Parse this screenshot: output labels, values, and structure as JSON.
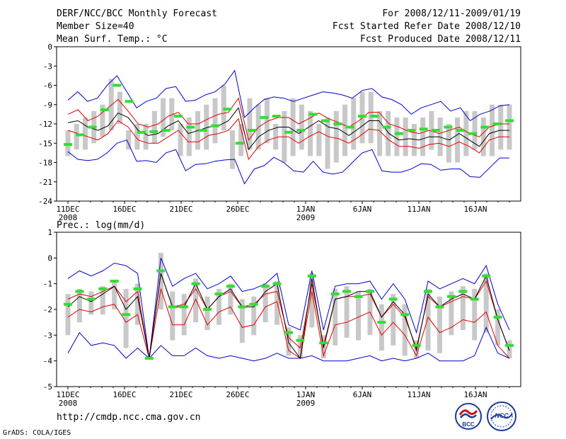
{
  "header": {
    "title": "DERF/NCC/BCC Monthly Forecast",
    "member_size": "Member Size=40",
    "variable": "Mean Surf. Temp.: °C",
    "period": "For 2008/12/11-2009/01/19",
    "start_date": "Fcst Started Refer Date 2008/12/10",
    "produced_date": "Fcst Produced Date 2008/12/11"
  },
  "footer": {
    "url": "http://cmdp.ncc.cma.gov.cn",
    "credit": "GrADS: COLA/IGES",
    "logo_bcc": "BCC",
    "logo_ncc": "NCC"
  },
  "colors": {
    "box": "#c8c8c8",
    "mean": "#000000",
    "inner": "#e00000",
    "outer": "#0000cc",
    "obs": "#33dd33"
  },
  "chart_data": [
    {
      "type": "line",
      "title": "Mean Surf. Temp.: °C",
      "ylim": [
        -24,
        0
      ],
      "yticks": [
        0,
        -3,
        -6,
        -9,
        -12,
        -15,
        -18,
        -21,
        -24
      ],
      "xlim": [
        1,
        40
      ],
      "xtick_days": [
        1,
        6,
        11,
        16,
        22,
        27,
        32,
        37
      ],
      "xtick_labels": [
        "11DEC",
        "16DEC",
        "21DEC",
        "26DEC",
        "1JAN",
        "6JAN",
        "11JAN",
        "16JAN"
      ],
      "xtick_year_labels": [
        "2008",
        "",
        "",
        "",
        "2009",
        "",
        "",
        ""
      ],
      "series": [
        {
          "name": "box_top",
          "values": [
            -13,
            -12,
            -11,
            -10,
            -9,
            -5,
            -7,
            -13,
            -12,
            -12,
            -10,
            -8,
            -8,
            -12,
            -11,
            -10,
            -9,
            -8,
            -6,
            -13,
            -12,
            -8,
            -9,
            -8,
            -12,
            -10,
            -8,
            -9,
            -10,
            -12,
            -11,
            -10,
            -9,
            -8,
            -7,
            -7,
            -10,
            -10,
            -11,
            -11,
            -12,
            -11,
            -10,
            -11,
            -12,
            -11,
            -10,
            -10,
            -11,
            -9,
            -9,
            -9
          ]
        },
        {
          "name": "box_bottom",
          "values": [
            -17,
            -16,
            -16,
            -15,
            -14,
            -13,
            -12,
            -16,
            -16,
            -16,
            -15,
            -14,
            -13,
            -17,
            -17,
            -16,
            -16,
            -15,
            -13,
            -19,
            -17,
            -16,
            -16,
            -15,
            -16,
            -18,
            -17,
            -16,
            -17,
            -17,
            -19,
            -18,
            -17,
            -16,
            -15,
            -15,
            -17,
            -17,
            -17,
            -17,
            -17,
            -17,
            -16,
            -17,
            -18,
            -18,
            -17,
            -16,
            -17,
            -17,
            -16,
            -16
          ]
        },
        {
          "name": "max",
          "values": [
            -8.3,
            -7.0,
            -8.5,
            -8.0,
            -6.0,
            -4.5,
            -7.0,
            -9.5,
            -8.5,
            -8.0,
            -6.5,
            -6.2,
            -8.5,
            -8.3,
            -7.5,
            -7.0,
            -5.8,
            -3.7,
            -11.0,
            -9.5,
            -8.2,
            -7.8,
            -8.0,
            -8.5,
            -8.0,
            -7.5,
            -7.0,
            -7.2,
            -7.5,
            -8.0,
            -6.8,
            -6.5,
            -7.8,
            -8.2,
            -9.0,
            -10.5,
            -9.5,
            -9.0,
            -8.5,
            -10.0,
            -9.5,
            -11.5,
            -10.5,
            -10.0,
            -9.2,
            -9.0
          ]
        },
        {
          "name": "p_upper",
          "values": [
            -10.5,
            -9.8,
            -11.5,
            -10.8,
            -9.5,
            -8.2,
            -10.0,
            -12.0,
            -12.5,
            -12.0,
            -10.8,
            -10.2,
            -12.0,
            -12.0,
            -11.2,
            -10.5,
            -10.2,
            -8.0,
            -14.5,
            -12.5,
            -11.5,
            -11.0,
            -11.0,
            -12.0,
            -11.2,
            -10.3,
            -11.2,
            -11.8,
            -12.5,
            -11.5,
            -10.2,
            -10.2,
            -12.0,
            -12.5,
            -13.2,
            -13.5,
            -13.0,
            -13.5,
            -13.0,
            -12.5,
            -13.5,
            -14.0,
            -12.5,
            -12.0,
            -12.0
          ]
        },
        {
          "name": "mean",
          "values": [
            -11.8,
            -11.5,
            -12.5,
            -13.0,
            -12.3,
            -10.3,
            -11.0,
            -13.0,
            -13.8,
            -13.5,
            -12.3,
            -11.5,
            -13.5,
            -13.0,
            -12.5,
            -12.3,
            -11.5,
            -9.5,
            -16.0,
            -14.0,
            -13.0,
            -12.5,
            -12.5,
            -13.5,
            -12.5,
            -11.5,
            -12.5,
            -12.8,
            -13.8,
            -12.7,
            -11.5,
            -11.5,
            -13.5,
            -14.5,
            -14.3,
            -14.5,
            -14.0,
            -14.0,
            -14.5,
            -13.5,
            -14.5,
            -15.5,
            -13.5,
            -13.0,
            -13.0
          ]
        },
        {
          "name": "p_lower",
          "values": [
            -13.0,
            -13.5,
            -14.0,
            -14.5,
            -13.5,
            -11.5,
            -12.5,
            -14.5,
            -15.0,
            -15.0,
            -14.0,
            -13.0,
            -14.8,
            -14.8,
            -13.8,
            -13.5,
            -13.0,
            -11.2,
            -17.5,
            -15.5,
            -14.5,
            -14.0,
            -14.0,
            -15.0,
            -14.0,
            -13.2,
            -14.0,
            -14.3,
            -15.0,
            -14.0,
            -12.8,
            -13.0,
            -14.5,
            -15.5,
            -15.5,
            -15.8,
            -15.2,
            -15.0,
            -15.5,
            -14.8,
            -15.5,
            -16.5,
            -14.5,
            -14.0,
            -14.0
          ]
        },
        {
          "name": "min",
          "values": [
            -16.3,
            -17.5,
            -17.7,
            -17.5,
            -16.5,
            -15.0,
            -14.5,
            -17.8,
            -17.7,
            -18.0,
            -16.5,
            -16.0,
            -19.3,
            -18.3,
            -18.2,
            -17.8,
            -17.6,
            -17.5,
            -21.3,
            -19.0,
            -18.5,
            -17.2,
            -18.0,
            -19.3,
            -19.5,
            -17.8,
            -19.5,
            -19.8,
            -19.5,
            -18.0,
            -16.5,
            -16.0,
            -19.3,
            -19.5,
            -19.5,
            -19.0,
            -18.2,
            -18.3,
            -19.2,
            -19.0,
            -19.0,
            -20.2,
            -20.3,
            -18.8,
            -17.3,
            -17.3
          ]
        },
        {
          "name": "observed",
          "values": [
            -15.2,
            -13.7,
            -12.5,
            -9.8,
            -6.0,
            -8.5,
            -13.3,
            -13.2,
            -13.0,
            -10.8,
            -12.5,
            -13.0,
            -12.3,
            -9.7,
            -15.0,
            -13.0,
            -11.0,
            -10.8,
            -13.3,
            -13.0,
            -10.5,
            -11.5,
            -12.0,
            -12.5,
            -10.8,
            -10.8,
            -12.5,
            -13.5,
            -13.0,
            -12.8,
            -13.0,
            -12.5,
            -13.0,
            -13.5,
            -12.5,
            -12.0,
            -11.5
          ]
        }
      ]
    },
    {
      "type": "line",
      "title": "Prec.: log(mm/d)",
      "ylim": [
        -5,
        1
      ],
      "yticks": [
        1,
        0,
        -1,
        -2,
        -3,
        -4,
        -5
      ],
      "xlim": [
        1,
        40
      ],
      "xtick_days": [
        1,
        6,
        11,
        16,
        22,
        27,
        32,
        37
      ],
      "xtick_labels": [
        "11DEC",
        "16DEC",
        "21DEC",
        "26DEC",
        "1JAN",
        "6JAN",
        "11JAN",
        "16JAN"
      ],
      "xtick_year_labels": [
        "2008",
        "",
        "",
        "",
        "2009",
        "",
        "",
        ""
      ],
      "series": [
        {
          "name": "box_top",
          "values": [
            -1.4,
            -1.2,
            -1.3,
            -1.1,
            -0.9,
            -1.2,
            -1.0,
            -3.9,
            0.2,
            -1.3,
            -1.4,
            -0.8,
            -1.5,
            -1.2,
            -1.0,
            -1.6,
            -1.5,
            -1.0,
            -0.9,
            -2.7,
            -3.0,
            -0.6,
            -3.0,
            -1.2,
            -1.1,
            -1.3,
            -1.2,
            -1.8,
            -1.4,
            -1.8,
            -3.2,
            -1.2,
            -1.5,
            -1.3,
            -1.1,
            -1.2,
            -0.6,
            -2.0,
            -3.2
          ]
        },
        {
          "name": "box_bottom",
          "values": [
            -3.0,
            -2.5,
            -2.2,
            -2.2,
            -2.0,
            -3.5,
            -2.6,
            -3.9,
            -2.0,
            -3.2,
            -3.0,
            -2.5,
            -2.8,
            -2.6,
            -2.2,
            -3.3,
            -3.0,
            -2.5,
            -2.6,
            -3.8,
            -3.9,
            -2.7,
            -3.9,
            -3.4,
            -3.1,
            -3.2,
            -3.0,
            -3.6,
            -3.4,
            -3.8,
            -3.9,
            -3.6,
            -3.7,
            -3.0,
            -2.8,
            -3.2,
            -2.9,
            -3.4,
            -3.9
          ]
        },
        {
          "name": "max",
          "values": [
            -0.8,
            -0.5,
            -0.7,
            -0.5,
            -0.2,
            -0.3,
            -0.6,
            -3.9,
            0.0,
            -1.1,
            -0.8,
            -0.6,
            -1.2,
            -1.0,
            -0.7,
            -1.3,
            -1.2,
            -1.0,
            -0.6,
            -2.6,
            -2.8,
            -0.5,
            -2.8,
            -1.1,
            -1.0,
            -1.0,
            -0.9,
            -1.6,
            -1.0,
            -1.6,
            -2.9,
            -0.9,
            -1.2,
            -1.0,
            -0.8,
            -1.0,
            -0.3,
            -1.8,
            -2.8
          ]
        },
        {
          "name": "p_upper",
          "values": [
            -1.6,
            -1.4,
            -1.5,
            -1.3,
            -1.1,
            -1.7,
            -1.3,
            -3.9,
            -0.6,
            -1.9,
            -1.8,
            -1.2,
            -2.0,
            -1.5,
            -1.3,
            -1.9,
            -1.8,
            -1.4,
            -1.3,
            -3.1,
            -3.5,
            -1.0,
            -3.4,
            -1.6,
            -1.5,
            -1.5,
            -1.4,
            -2.3,
            -1.8,
            -2.3,
            -3.5,
            -1.5,
            -1.9,
            -1.7,
            -1.5,
            -1.6,
            -0.9,
            -2.4,
            -3.6
          ]
        },
        {
          "name": "mean",
          "values": [
            -1.9,
            -1.5,
            -1.7,
            -1.4,
            -1.1,
            -2.0,
            -1.5,
            -3.9,
            -0.6,
            -1.9,
            -1.9,
            -1.0,
            -2.0,
            -1.5,
            -1.2,
            -1.9,
            -1.9,
            -1.3,
            -1.0,
            -3.3,
            -3.9,
            -0.8,
            -3.5,
            -1.6,
            -1.5,
            -1.3,
            -1.3,
            -2.3,
            -1.7,
            -2.2,
            -3.6,
            -1.4,
            -1.9,
            -1.6,
            -1.4,
            -1.6,
            -0.7,
            -2.4,
            -3.6
          ]
        },
        {
          "name": "p_lower",
          "values": [
            -2.3,
            -2.0,
            -2.1,
            -1.9,
            -1.8,
            -2.5,
            -2.2,
            -3.9,
            -1.2,
            -2.6,
            -2.6,
            -1.6,
            -2.6,
            -2.1,
            -1.9,
            -2.7,
            -2.6,
            -1.9,
            -1.7,
            -3.6,
            -3.9,
            -1.3,
            -3.8,
            -2.6,
            -2.5,
            -2.3,
            -2.1,
            -3.0,
            -2.5,
            -3.0,
            -3.8,
            -2.3,
            -2.9,
            -2.7,
            -2.4,
            -2.5,
            -2.1,
            -3.4,
            -3.9
          ]
        },
        {
          "name": "min",
          "values": [
            -3.7,
            -2.9,
            -3.4,
            -3.3,
            -3.4,
            -3.9,
            -3.5,
            -3.9,
            -3.4,
            -3.8,
            -3.8,
            -3.5,
            -3.8,
            -3.9,
            -3.8,
            -3.9,
            -4.0,
            -3.9,
            -3.7,
            -3.9,
            -3.9,
            -3.8,
            -4.0,
            -4.0,
            -4.0,
            -3.9,
            -3.8,
            -4.0,
            -3.9,
            -4.0,
            -3.9,
            -3.7,
            -4.0,
            -4.0,
            -4.0,
            -3.8,
            -2.7,
            -3.7,
            -3.9
          ]
        },
        {
          "name": "observed",
          "values": [
            -1.8,
            -1.3,
            -1.6,
            -1.2,
            -0.9,
            -2.2,
            -1.2,
            -3.9,
            -0.5,
            -1.9,
            -1.9,
            -1.0,
            -2.0,
            -1.4,
            -1.1,
            -1.9,
            -1.8,
            -1.1,
            -1.0,
            -2.9,
            -3.2,
            -0.7,
            -3.3,
            -1.4,
            -1.3,
            -1.5,
            -1.3,
            -2.5,
            -1.6,
            -2.2,
            -3.4,
            -1.3,
            -1.9,
            -1.5,
            -1.3,
            -1.6,
            -0.7,
            -2.3,
            -3.4
          ]
        }
      ]
    }
  ]
}
